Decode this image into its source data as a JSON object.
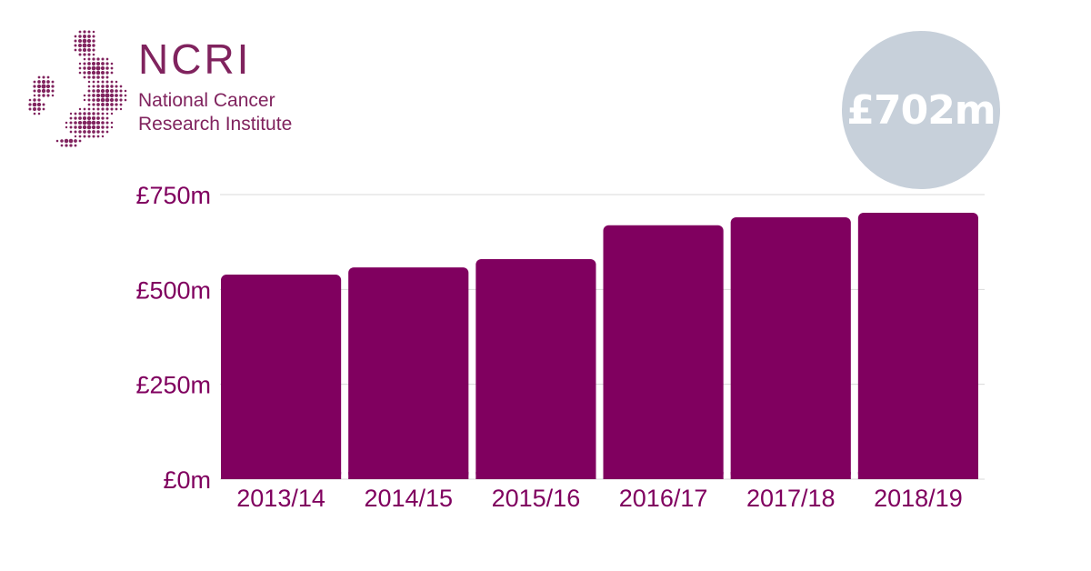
{
  "logo": {
    "acronym": "NCRI",
    "line1": "National Cancer",
    "line2": "Research Institute"
  },
  "badge": {
    "total": "£702m"
  },
  "colors": {
    "bar": "#80005f",
    "brand": "#80235e",
    "badge": "#c7d0da",
    "grid": "#d9d9d9"
  },
  "chart_data": {
    "type": "bar",
    "categories": [
      "2013/14",
      "2014/15",
      "2015/16",
      "2016/17",
      "2017/18",
      "2018/19"
    ],
    "values": [
      539,
      558,
      580,
      669,
      690,
      702
    ],
    "ylim": [
      0,
      750
    ],
    "yticks": [
      0,
      250,
      500,
      750
    ],
    "ytick_labels": [
      "£0m",
      "£250m",
      "£500m",
      "£750m"
    ],
    "grid": true,
    "title": "",
    "xlabel": "",
    "ylabel": ""
  }
}
